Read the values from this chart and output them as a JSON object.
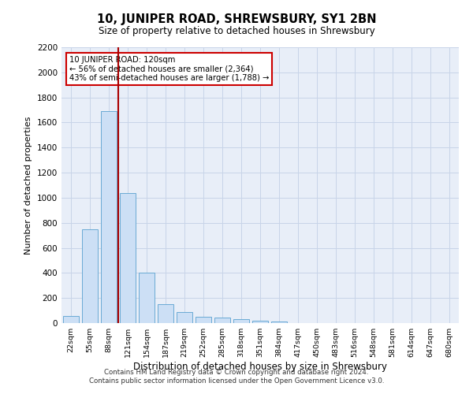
{
  "title": "10, JUNIPER ROAD, SHREWSBURY, SY1 2BN",
  "subtitle": "Size of property relative to detached houses in Shrewsbury",
  "xlabel": "Distribution of detached houses by size in Shrewsbury",
  "ylabel": "Number of detached properties",
  "bar_values": [
    55,
    745,
    1690,
    1035,
    405,
    150,
    85,
    50,
    45,
    30,
    20,
    15,
    0,
    0,
    0,
    0,
    0,
    0,
    0,
    0,
    0
  ],
  "categories": [
    "22sqm",
    "55sqm",
    "88sqm",
    "121sqm",
    "154sqm",
    "187sqm",
    "219sqm",
    "252sqm",
    "285sqm",
    "318sqm",
    "351sqm",
    "384sqm",
    "417sqm",
    "450sqm",
    "483sqm",
    "516sqm",
    "548sqm",
    "581sqm",
    "614sqm",
    "647sqm",
    "680sqm"
  ],
  "bar_color": "#ccdff5",
  "bar_edge_color": "#6aaad4",
  "grid_color": "#c8d4e8",
  "background_color": "#e8eef8",
  "vline_color": "#aa0000",
  "vline_pos": 2.5,
  "annotation_text": "10 JUNIPER ROAD: 120sqm\n← 56% of detached houses are smaller (2,364)\n43% of semi-detached houses are larger (1,788) →",
  "annotation_box_facecolor": "#ffffff",
  "annotation_box_edgecolor": "#cc0000",
  "ylim": [
    0,
    2200
  ],
  "yticks": [
    0,
    200,
    400,
    600,
    800,
    1000,
    1200,
    1400,
    1600,
    1800,
    2000,
    2200
  ],
  "footer_line1": "Contains HM Land Registry data © Crown copyright and database right 2024.",
  "footer_line2": "Contains public sector information licensed under the Open Government Licence v3.0.",
  "figsize": [
    6.0,
    5.0
  ],
  "dpi": 100
}
